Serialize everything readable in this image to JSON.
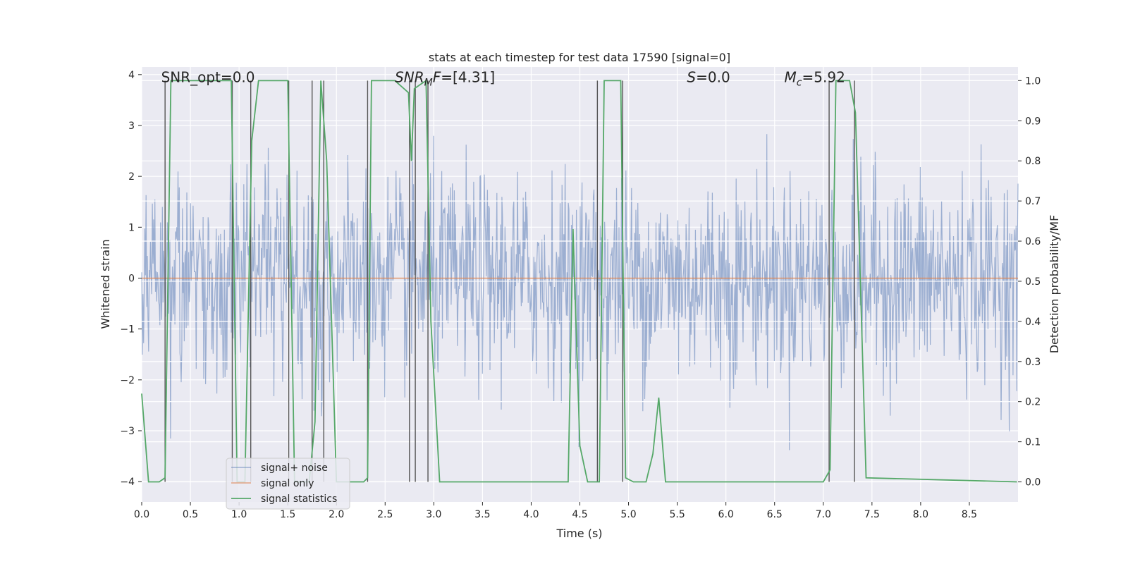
{
  "chart_data": {
    "type": "line",
    "title": "stats at each timestep for test data 17590 [signal=0]",
    "xlabel": "Time (s)",
    "ylabel": "Whitened strain",
    "y2label": "Detection probability/MF",
    "xlim": [
      0,
      9.0
    ],
    "ylim": [
      -4.4,
      4.15
    ],
    "y2lim": [
      -0.05,
      1.034
    ],
    "xticks": [
      0.0,
      0.5,
      1.0,
      1.5,
      2.0,
      2.5,
      3.0,
      3.5,
      4.0,
      4.5,
      5.0,
      5.5,
      6.0,
      6.5,
      7.0,
      7.5,
      8.0,
      8.5
    ],
    "xtick_labels": [
      "0.0",
      "0.5",
      "1.0",
      "1.5",
      "2.0",
      "2.5",
      "3.0",
      "3.5",
      "4.0",
      "4.5",
      "5.0",
      "5.5",
      "6.0",
      "6.5",
      "7.0",
      "7.5",
      "8.0",
      "8.5"
    ],
    "yticks": [
      4,
      3,
      2,
      1,
      0,
      -1,
      -2,
      -3,
      -4
    ],
    "ytick_labels": [
      "4",
      "3",
      "2",
      "1",
      "0",
      "−1",
      "−2",
      "−3",
      "−4"
    ],
    "y2ticks": [
      1.0,
      0.9,
      0.8,
      0.7,
      0.6,
      0.5,
      0.4,
      0.3,
      0.2,
      0.1,
      0.0
    ],
    "y2tick_labels": [
      "1.0",
      "0.9",
      "0.8",
      "0.7",
      "0.6",
      "0.5",
      "0.4",
      "0.3",
      "0.2",
      "0.1",
      "0.0"
    ],
    "grid": true,
    "legend_location": "lower-left",
    "series": [
      {
        "name": "signal+ noise",
        "color": "#4c72b0",
        "style": "dense noise, amplitude approx ±1.7 with spikes to ±3.8",
        "noise_sigma": 1.0
      },
      {
        "name": "signal only",
        "color": "#dd8452",
        "values_constant": 0
      },
      {
        "name": "signal statistics",
        "color": "#55a868",
        "axis": "right",
        "x": [
          0.0,
          0.07,
          0.18,
          0.24,
          0.3,
          0.92,
          0.98,
          1.06,
          1.13,
          1.2,
          1.5,
          1.57,
          1.72,
          1.78,
          1.84,
          1.9,
          2.0,
          2.06,
          2.28,
          2.32,
          2.36,
          2.6,
          2.74,
          2.77,
          2.8,
          2.86,
          2.92,
          2.97,
          3.06,
          4.38,
          4.43,
          4.5,
          4.58,
          4.7,
          4.75,
          4.92,
          4.97,
          5.05,
          5.18,
          5.25,
          5.31,
          5.38,
          5.5,
          7.0,
          7.07,
          7.13,
          7.27,
          7.33,
          7.44,
          8.99
        ],
        "y": [
          0.22,
          0.0,
          0.0,
          0.01,
          1.0,
          1.0,
          0.0,
          0.0,
          0.85,
          1.0,
          1.0,
          0.0,
          0.0,
          0.15,
          1.0,
          0.8,
          0.0,
          0.0,
          0.0,
          0.01,
          1.0,
          1.0,
          0.97,
          0.8,
          0.98,
          0.99,
          1.0,
          0.4,
          0.0,
          0.0,
          0.63,
          0.09,
          0.0,
          0.0,
          1.0,
          1.0,
          0.01,
          0.0,
          0.0,
          0.07,
          0.21,
          0.0,
          0.0,
          0.0,
          0.03,
          1.0,
          1.0,
          0.92,
          0.01,
          0.0
        ]
      }
    ],
    "vlines": [
      0.24,
      0.93,
      1.12,
      1.51,
      1.75,
      1.87,
      2.32,
      2.75,
      2.81,
      2.94,
      4.68,
      4.94,
      7.06,
      7.32
    ],
    "annotations": [
      {
        "label": "SNR_opt=0.0",
        "x": 0.2,
        "y": 3.88
      },
      {
        "label": "SNR",
        "sub": "M",
        "suffix": "F=[4.31]",
        "italic": true,
        "x": 2.6,
        "y": 3.88
      },
      {
        "label": "S",
        "suffix": "=0.0",
        "italic": true,
        "x": 5.6,
        "y": 3.88
      },
      {
        "label": "M",
        "sub": "c",
        "suffix": "=5.92",
        "italic": true,
        "x": 6.6,
        "y": 3.88
      }
    ]
  }
}
